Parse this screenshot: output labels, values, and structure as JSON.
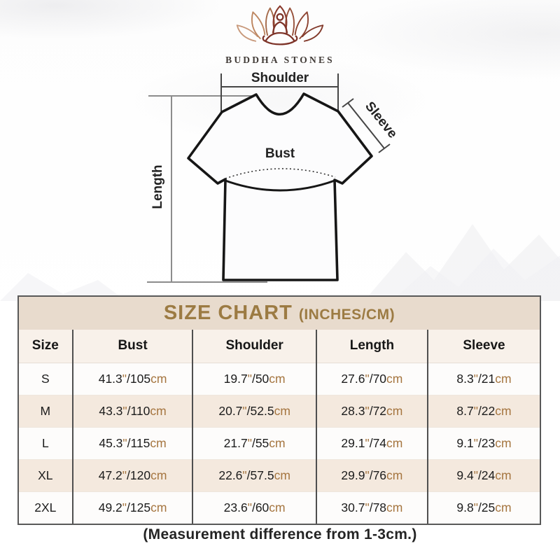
{
  "brand": {
    "name": "BUDDHA STONES"
  },
  "diagram": {
    "labels": {
      "shoulder": "Shoulder",
      "sleeve": "Sleeve",
      "bust": "Bust",
      "length": "Length"
    }
  },
  "size_chart": {
    "title": "SIZE CHART",
    "subtitle": "(INCHES/CM)",
    "columns": [
      "Size",
      "Bust",
      "Shoulder",
      "Length",
      "Sleeve"
    ],
    "unit_inch_mark": "\"",
    "unit_cm": "cm",
    "rows": [
      {
        "size": "S",
        "bust": {
          "in": "41.3",
          "cm": "105"
        },
        "shoulder": {
          "in": "19.7",
          "cm": "50"
        },
        "length": {
          "in": "27.6",
          "cm": "70"
        },
        "sleeve": {
          "in": "8.3",
          "cm": "21"
        }
      },
      {
        "size": "M",
        "bust": {
          "in": "43.3",
          "cm": "110"
        },
        "shoulder": {
          "in": "20.7",
          "cm": "52.5"
        },
        "length": {
          "in": "28.3",
          "cm": "72"
        },
        "sleeve": {
          "in": "8.7",
          "cm": "22"
        }
      },
      {
        "size": "L",
        "bust": {
          "in": "45.3",
          "cm": "115"
        },
        "shoulder": {
          "in": "21.7",
          "cm": "55"
        },
        "length": {
          "in": "29.1",
          "cm": "74"
        },
        "sleeve": {
          "in": "9.1",
          "cm": "23"
        }
      },
      {
        "size": "XL",
        "bust": {
          "in": "47.2",
          "cm": "120"
        },
        "shoulder": {
          "in": "22.6",
          "cm": "57.5"
        },
        "length": {
          "in": "29.9",
          "cm": "76"
        },
        "sleeve": {
          "in": "9.4",
          "cm": "24"
        }
      },
      {
        "size": "2XL",
        "bust": {
          "in": "49.2",
          "cm": "125"
        },
        "shoulder": {
          "in": "23.6",
          "cm": "60"
        },
        "length": {
          "in": "30.7",
          "cm": "78"
        },
        "sleeve": {
          "in": "9.8",
          "cm": "25"
        }
      }
    ]
  },
  "footer": {
    "note": "(Measurement difference from 1-3cm.)"
  },
  "colors": {
    "accent_gold": "#9c7b43",
    "unit_brown": "#a5753f",
    "band_bg": "#e8dbcd",
    "row_alt_bg": "#f4e9de",
    "logo_maroon": "#7d3328",
    "diagram_line": "#1a1a1a"
  }
}
